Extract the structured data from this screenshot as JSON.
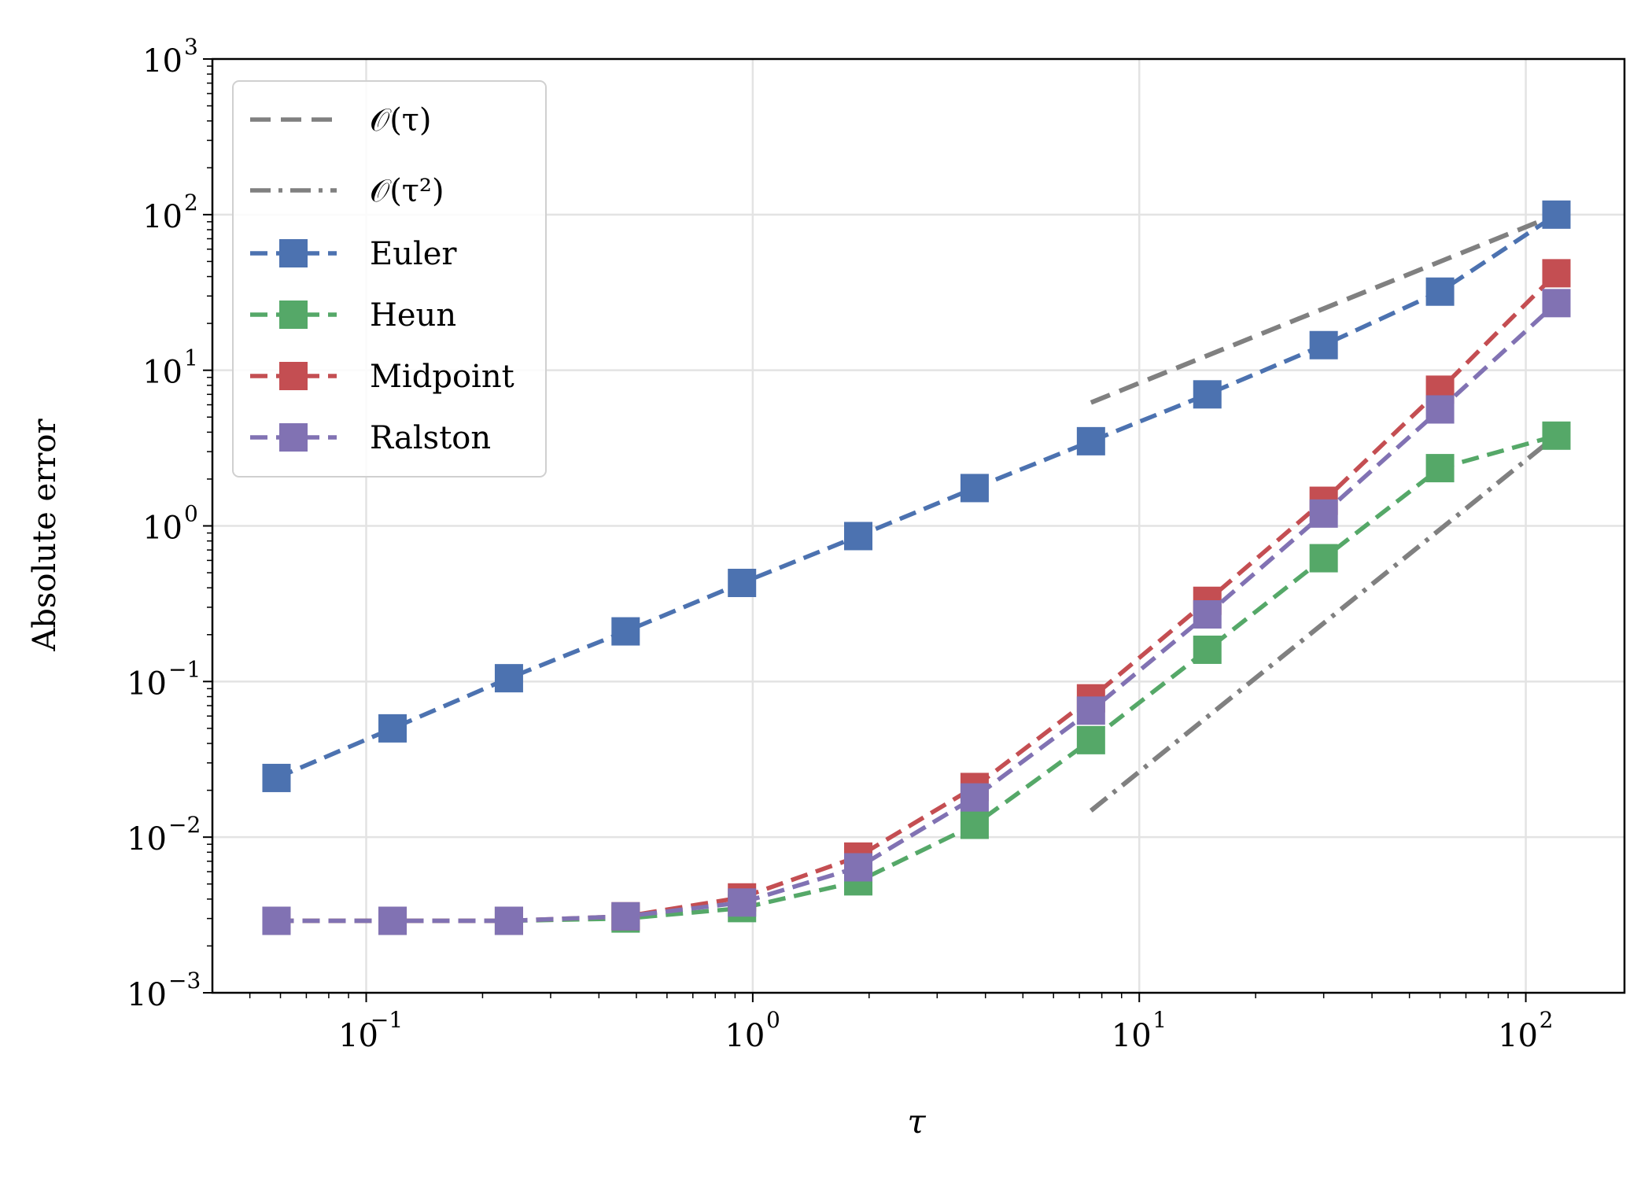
{
  "chart_data": {
    "type": "line",
    "xlabel": "τ",
    "ylabel": "Absolute error",
    "xscale": "log",
    "yscale": "log",
    "xlim": [
      0.04,
      180
    ],
    "ylim": [
      0.001,
      1000
    ],
    "grid": true,
    "legend_position": "top-left",
    "x_ticks": [
      {
        "value": 0.1,
        "base": "10",
        "exp": "−1"
      },
      {
        "value": 1,
        "base": "10",
        "exp": "0"
      },
      {
        "value": 10,
        "base": "10",
        "exp": "1"
      },
      {
        "value": 100,
        "base": "10",
        "exp": "2"
      }
    ],
    "y_ticks": [
      {
        "value": 0.001,
        "base": "10",
        "exp": "−3"
      },
      {
        "value": 0.01,
        "base": "10",
        "exp": "−2"
      },
      {
        "value": 0.1,
        "base": "10",
        "exp": "−1"
      },
      {
        "value": 1,
        "base": "10",
        "exp": "0"
      },
      {
        "value": 10,
        "base": "10",
        "exp": "1"
      },
      {
        "value": 100,
        "base": "10",
        "exp": "2"
      },
      {
        "value": 1000,
        "base": "10",
        "exp": "3"
      }
    ],
    "reference_lines": [
      {
        "name": "𝒪(τ)",
        "style": "dashed",
        "color": "#808080",
        "x": [
          7.5,
          120
        ],
        "y": [
          6.2,
          100
        ]
      },
      {
        "name": "𝒪(τ²)",
        "style": "dashdot",
        "color": "#808080",
        "x": [
          7.5,
          120
        ],
        "y": [
          0.0148,
          3.8
        ]
      }
    ],
    "x": [
      0.0586,
      0.117,
      0.234,
      0.469,
      0.938,
      1.875,
      3.75,
      7.5,
      15,
      30,
      60,
      120
    ],
    "series": [
      {
        "name": "Euler",
        "color": "#4c72b0",
        "values": [
          0.024,
          0.05,
          0.105,
          0.21,
          0.43,
          0.86,
          1.75,
          3.5,
          7.0,
          14.5,
          32.0,
          100.0
        ]
      },
      {
        "name": "Heun",
        "color": "#55a868",
        "values": [
          0.0029,
          0.0029,
          0.0029,
          0.003,
          0.0035,
          0.0052,
          0.012,
          0.042,
          0.16,
          0.62,
          2.35,
          3.8
        ]
      },
      {
        "name": "Midpoint",
        "color": "#c44e52",
        "values": [
          0.0029,
          0.0029,
          0.0029,
          0.0031,
          0.0041,
          0.0075,
          0.021,
          0.078,
          0.33,
          1.45,
          7.5,
          42.0
        ]
      },
      {
        "name": "Ralston",
        "color": "#8172b3",
        "values": [
          0.0029,
          0.0029,
          0.0029,
          0.0031,
          0.0038,
          0.0064,
          0.018,
          0.065,
          0.27,
          1.2,
          5.6,
          27.0
        ]
      }
    ]
  }
}
